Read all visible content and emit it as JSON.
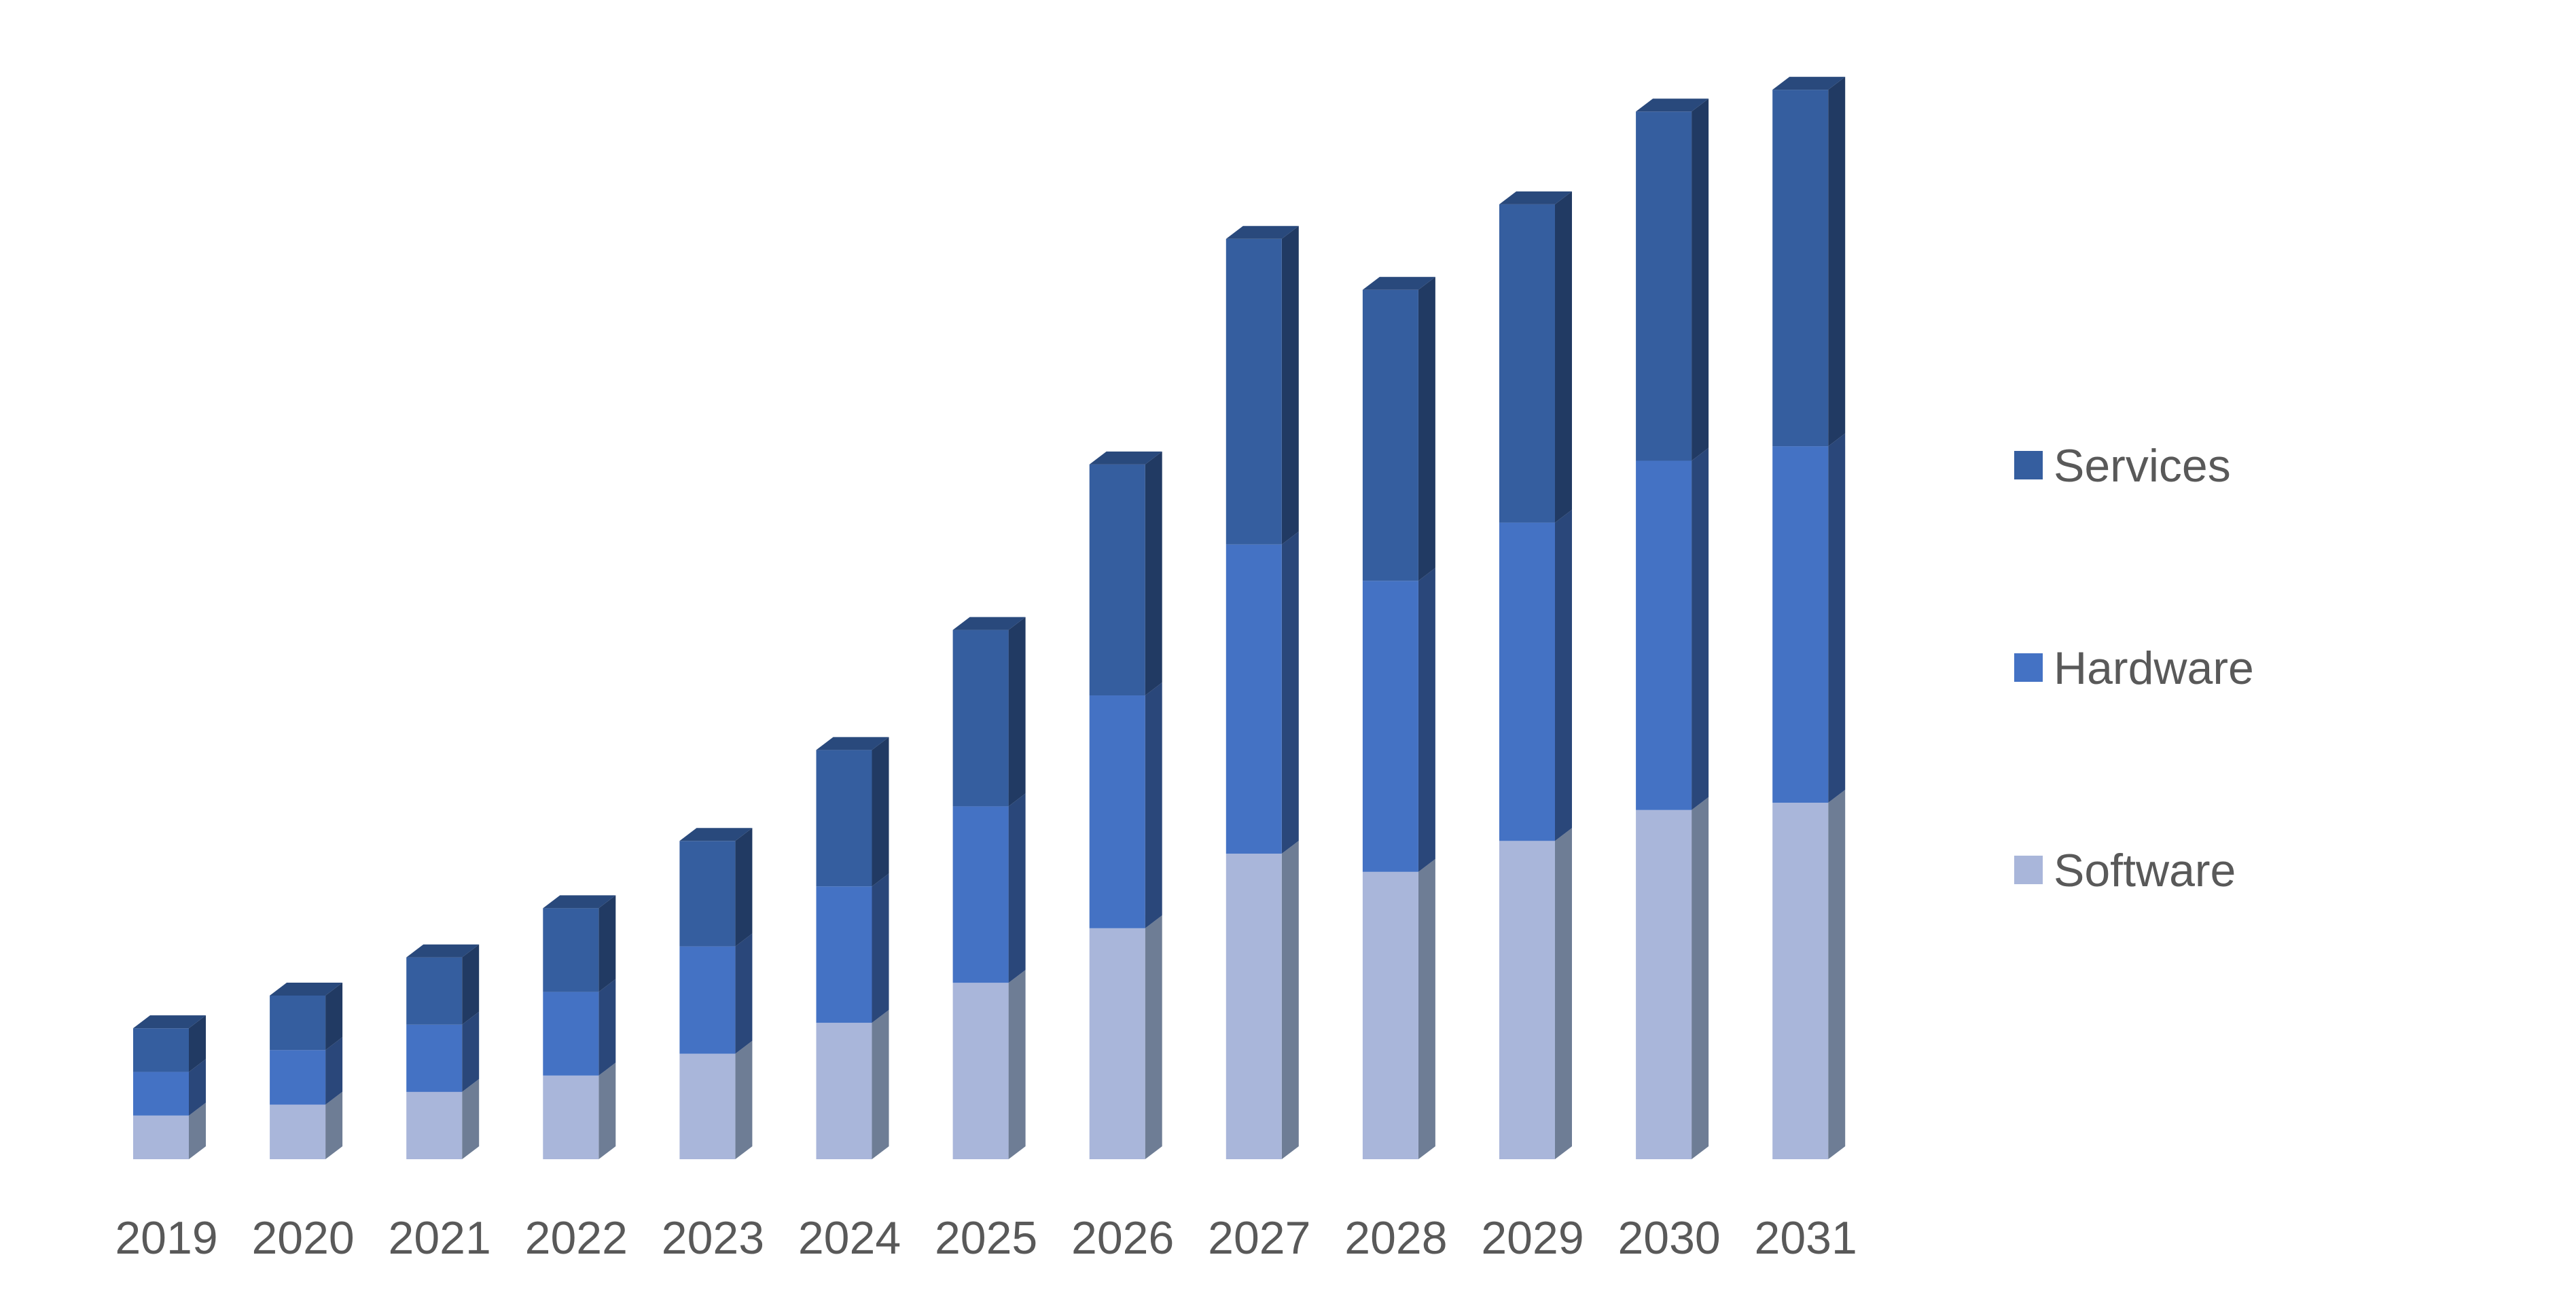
{
  "chart_data": {
    "type": "bar",
    "stacked": true,
    "style": "3d-column",
    "categories": [
      "2019",
      "2020",
      "2021",
      "2022",
      "2023",
      "2024",
      "2025",
      "2026",
      "2027",
      "2028",
      "2029",
      "2030",
      "2031"
    ],
    "series": [
      {
        "name": "Software",
        "color": "#A9B6DA",
        "values": [
          24,
          30,
          37,
          46,
          58,
          75,
          97,
          127,
          168,
          158,
          175,
          192,
          196
        ]
      },
      {
        "name": "Hardware",
        "color": "#4472C4",
        "values": [
          24,
          30,
          37,
          46,
          59,
          75,
          97,
          128,
          170,
          160,
          175,
          192,
          196
        ]
      },
      {
        "name": "Services",
        "color": "#355E9F",
        "values": [
          24,
          30,
          37,
          46,
          58,
          75,
          97,
          127,
          168,
          160,
          175,
          192,
          196
        ]
      }
    ],
    "legend_order": [
      "Services",
      "Hardware",
      "Software"
    ],
    "legend_position": "right",
    "ylim": [
      0,
      600
    ],
    "grid": false,
    "y_axis_visible": false
  }
}
